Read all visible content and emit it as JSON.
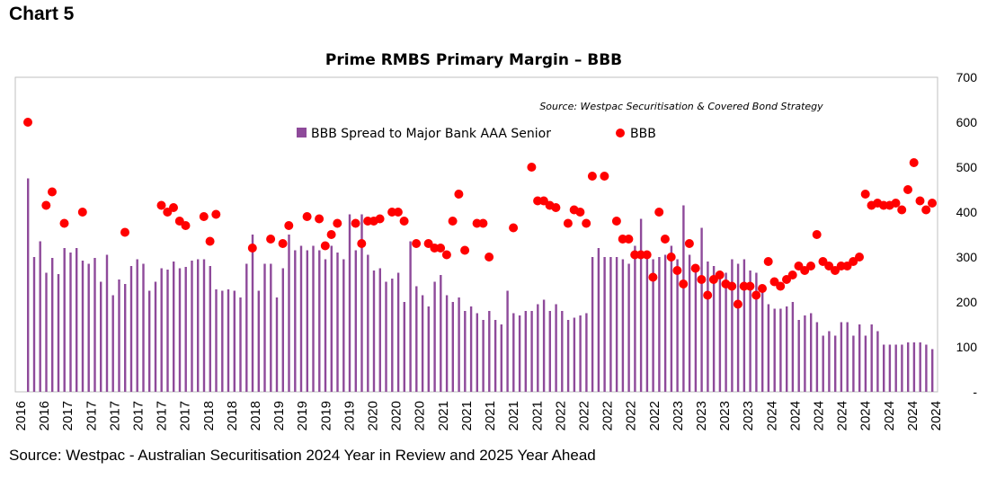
{
  "page": {
    "heading": "Chart 5",
    "footer": "Source: Westpac - Australian Securitisation 2024 Year in Review and 2025 Year Ahead"
  },
  "chart_data": {
    "type": "bar",
    "title": "Prime RMBS Primary Margin – BBB",
    "source_note": "Source: Westpac Securitisation & Covered Bond Strategy",
    "ylim": [
      0,
      700
    ],
    "yticks": [
      0,
      100,
      200,
      300,
      400,
      500,
      600,
      700
    ],
    "ytick_labels": [
      "-",
      "100",
      "200",
      "300",
      "400",
      "500",
      "600",
      "700"
    ],
    "grid": false,
    "legend_position": "top-center",
    "x_tick_labels": [
      "2016",
      "2016",
      "2017",
      "2017",
      "2017",
      "2017",
      "2017",
      "2017",
      "2018",
      "2018",
      "2018",
      "2019",
      "2019",
      "2019",
      "2019",
      "2020",
      "2020",
      "2020",
      "2021",
      "2021",
      "2021",
      "2021",
      "2021",
      "2022",
      "2022",
      "2022",
      "2022",
      "2022",
      "2023",
      "2023",
      "2023",
      "2023",
      "2024",
      "2024",
      "2024",
      "2024",
      "2024",
      "2024",
      "2024",
      "2024"
    ],
    "series": [
      {
        "name": "BBB Spread to Major Bank AAA Senior",
        "kind": "bar",
        "color": "#8e4a9a",
        "points": [
          [
            0,
            475
          ],
          [
            1,
            300
          ],
          [
            2,
            335
          ],
          [
            3,
            265
          ],
          [
            4,
            298
          ],
          [
            5,
            262
          ],
          [
            6,
            320
          ],
          [
            7,
            310
          ],
          [
            8,
            320
          ],
          [
            9,
            292
          ],
          [
            10,
            285
          ],
          [
            11,
            298
          ],
          [
            12,
            245
          ],
          [
            13,
            305
          ],
          [
            14,
            215
          ],
          [
            15,
            250
          ],
          [
            16,
            240
          ],
          [
            17,
            280
          ],
          [
            18,
            295
          ],
          [
            19,
            285
          ],
          [
            20,
            225
          ],
          [
            21,
            245
          ],
          [
            22,
            275
          ],
          [
            23,
            272
          ],
          [
            24,
            290
          ],
          [
            25,
            275
          ],
          [
            26,
            278
          ],
          [
            27,
            292
          ],
          [
            28,
            295
          ],
          [
            29,
            295
          ],
          [
            30,
            280
          ],
          [
            31,
            228
          ],
          [
            32,
            225
          ],
          [
            33,
            228
          ],
          [
            34,
            225
          ],
          [
            35,
            210
          ],
          [
            36,
            285
          ],
          [
            37,
            350
          ],
          [
            38,
            225
          ],
          [
            39,
            285
          ],
          [
            40,
            285
          ],
          [
            41,
            210
          ],
          [
            42,
            275
          ],
          [
            43,
            350
          ],
          [
            44,
            315
          ],
          [
            45,
            325
          ],
          [
            46,
            315
          ],
          [
            47,
            325
          ],
          [
            48,
            315
          ],
          [
            49,
            295
          ],
          [
            50,
            325
          ],
          [
            51,
            310
          ],
          [
            52,
            295
          ],
          [
            53,
            395
          ],
          [
            54,
            315
          ],
          [
            55,
            395
          ],
          [
            56,
            305
          ],
          [
            57,
            270
          ],
          [
            58,
            275
          ],
          [
            59,
            245
          ],
          [
            60,
            252
          ],
          [
            61,
            265
          ],
          [
            62,
            200
          ],
          [
            63,
            335
          ],
          [
            64,
            235
          ],
          [
            65,
            215
          ],
          [
            66,
            190
          ],
          [
            67,
            245
          ],
          [
            68,
            260
          ],
          [
            69,
            215
          ],
          [
            70,
            200
          ],
          [
            71,
            210
          ],
          [
            72,
            180
          ],
          [
            73,
            190
          ],
          [
            74,
            175
          ],
          [
            75,
            160
          ],
          [
            76,
            180
          ],
          [
            77,
            160
          ],
          [
            78,
            150
          ],
          [
            79,
            225
          ],
          [
            80,
            175
          ],
          [
            81,
            170
          ],
          [
            82,
            180
          ],
          [
            83,
            180
          ],
          [
            84,
            195
          ],
          [
            85,
            205
          ],
          [
            86,
            180
          ],
          [
            87,
            195
          ],
          [
            88,
            180
          ],
          [
            89,
            160
          ],
          [
            90,
            165
          ],
          [
            91,
            170
          ],
          [
            92,
            175
          ],
          [
            93,
            300
          ],
          [
            94,
            320
          ],
          [
            95,
            300
          ],
          [
            96,
            300
          ],
          [
            97,
            300
          ],
          [
            98,
            295
          ],
          [
            99,
            285
          ],
          [
            100,
            325
          ],
          [
            101,
            385
          ],
          [
            102,
            300
          ],
          [
            103,
            295
          ],
          [
            104,
            300
          ],
          [
            105,
            305
          ],
          [
            106,
            325
          ],
          [
            107,
            295
          ],
          [
            108,
            415
          ],
          [
            109,
            305
          ],
          [
            110,
            280
          ],
          [
            111,
            365
          ],
          [
            112,
            290
          ],
          [
            113,
            280
          ],
          [
            114,
            270
          ],
          [
            115,
            265
          ],
          [
            116,
            295
          ],
          [
            117,
            285
          ],
          [
            118,
            295
          ],
          [
            119,
            270
          ],
          [
            120,
            265
          ],
          [
            121,
            225
          ],
          [
            122,
            195
          ],
          [
            123,
            185
          ],
          [
            124,
            185
          ],
          [
            125,
            190
          ],
          [
            126,
            200
          ],
          [
            127,
            160
          ],
          [
            128,
            170
          ],
          [
            129,
            175
          ],
          [
            130,
            155
          ],
          [
            131,
            125
          ],
          [
            132,
            135
          ],
          [
            133,
            125
          ],
          [
            134,
            155
          ],
          [
            135,
            155
          ],
          [
            136,
            125
          ],
          [
            137,
            150
          ],
          [
            138,
            125
          ],
          [
            139,
            150
          ],
          [
            140,
            135
          ],
          [
            141,
            105
          ],
          [
            142,
            105
          ],
          [
            143,
            105
          ],
          [
            144,
            105
          ],
          [
            145,
            110
          ],
          [
            146,
            110
          ],
          [
            147,
            110
          ],
          [
            148,
            105
          ],
          [
            149,
            95
          ]
        ]
      },
      {
        "name": "BBB",
        "kind": "scatter",
        "color": "#ff0000",
        "points": [
          [
            0,
            600
          ],
          [
            3,
            415
          ],
          [
            4,
            445
          ],
          [
            6,
            375
          ],
          [
            9,
            400
          ],
          [
            16,
            355
          ],
          [
            22,
            415
          ],
          [
            23,
            400
          ],
          [
            24,
            410
          ],
          [
            25,
            380
          ],
          [
            26,
            370
          ],
          [
            29,
            390
          ],
          [
            30,
            335
          ],
          [
            31,
            395
          ],
          [
            37,
            320
          ],
          [
            40,
            340
          ],
          [
            42,
            330
          ],
          [
            43,
            370
          ],
          [
            46,
            390
          ],
          [
            48,
            385
          ],
          [
            49,
            325
          ],
          [
            50,
            350
          ],
          [
            51,
            375
          ],
          [
            54,
            375
          ],
          [
            55,
            330
          ],
          [
            56,
            380
          ],
          [
            57,
            380
          ],
          [
            58,
            385
          ],
          [
            60,
            400
          ],
          [
            61,
            400
          ],
          [
            62,
            380
          ],
          [
            64,
            330
          ],
          [
            66,
            330
          ],
          [
            67,
            320
          ],
          [
            68,
            320
          ],
          [
            69,
            305
          ],
          [
            70,
            380
          ],
          [
            71,
            440
          ],
          [
            72,
            315
          ],
          [
            74,
            375
          ],
          [
            75,
            375
          ],
          [
            76,
            300
          ],
          [
            80,
            365
          ],
          [
            83,
            500
          ],
          [
            84,
            425
          ],
          [
            85,
            425
          ],
          [
            86,
            415
          ],
          [
            87,
            410
          ],
          [
            89,
            375
          ],
          [
            90,
            405
          ],
          [
            91,
            400
          ],
          [
            92,
            375
          ],
          [
            93,
            480
          ],
          [
            95,
            480
          ],
          [
            97,
            380
          ],
          [
            98,
            340
          ],
          [
            99,
            340
          ],
          [
            100,
            305
          ],
          [
            101,
            305
          ],
          [
            102,
            305
          ],
          [
            103,
            255
          ],
          [
            104,
            400
          ],
          [
            105,
            340
          ],
          [
            106,
            300
          ],
          [
            107,
            270
          ],
          [
            108,
            240
          ],
          [
            109,
            330
          ],
          [
            110,
            275
          ],
          [
            111,
            250
          ],
          [
            112,
            215
          ],
          [
            113,
            250
          ],
          [
            114,
            260
          ],
          [
            115,
            240
          ],
          [
            116,
            235
          ],
          [
            117,
            195
          ],
          [
            118,
            235
          ],
          [
            119,
            235
          ],
          [
            120,
            215
          ],
          [
            121,
            230
          ],
          [
            122,
            290
          ],
          [
            123,
            245
          ],
          [
            124,
            235
          ],
          [
            125,
            250
          ],
          [
            126,
            260
          ],
          [
            127,
            280
          ],
          [
            128,
            270
          ],
          [
            129,
            280
          ],
          [
            130,
            350
          ],
          [
            131,
            290
          ],
          [
            132,
            280
          ],
          [
            133,
            270
          ],
          [
            134,
            280
          ],
          [
            135,
            280
          ],
          [
            136,
            290
          ],
          [
            137,
            300
          ],
          [
            138,
            440
          ],
          [
            139,
            415
          ],
          [
            140,
            420
          ],
          [
            141,
            415
          ],
          [
            142,
            415
          ],
          [
            143,
            420
          ],
          [
            144,
            405
          ],
          [
            145,
            450
          ],
          [
            146,
            510
          ],
          [
            147,
            425
          ],
          [
            148,
            405
          ],
          [
            149,
            420
          ]
        ]
      }
    ]
  }
}
